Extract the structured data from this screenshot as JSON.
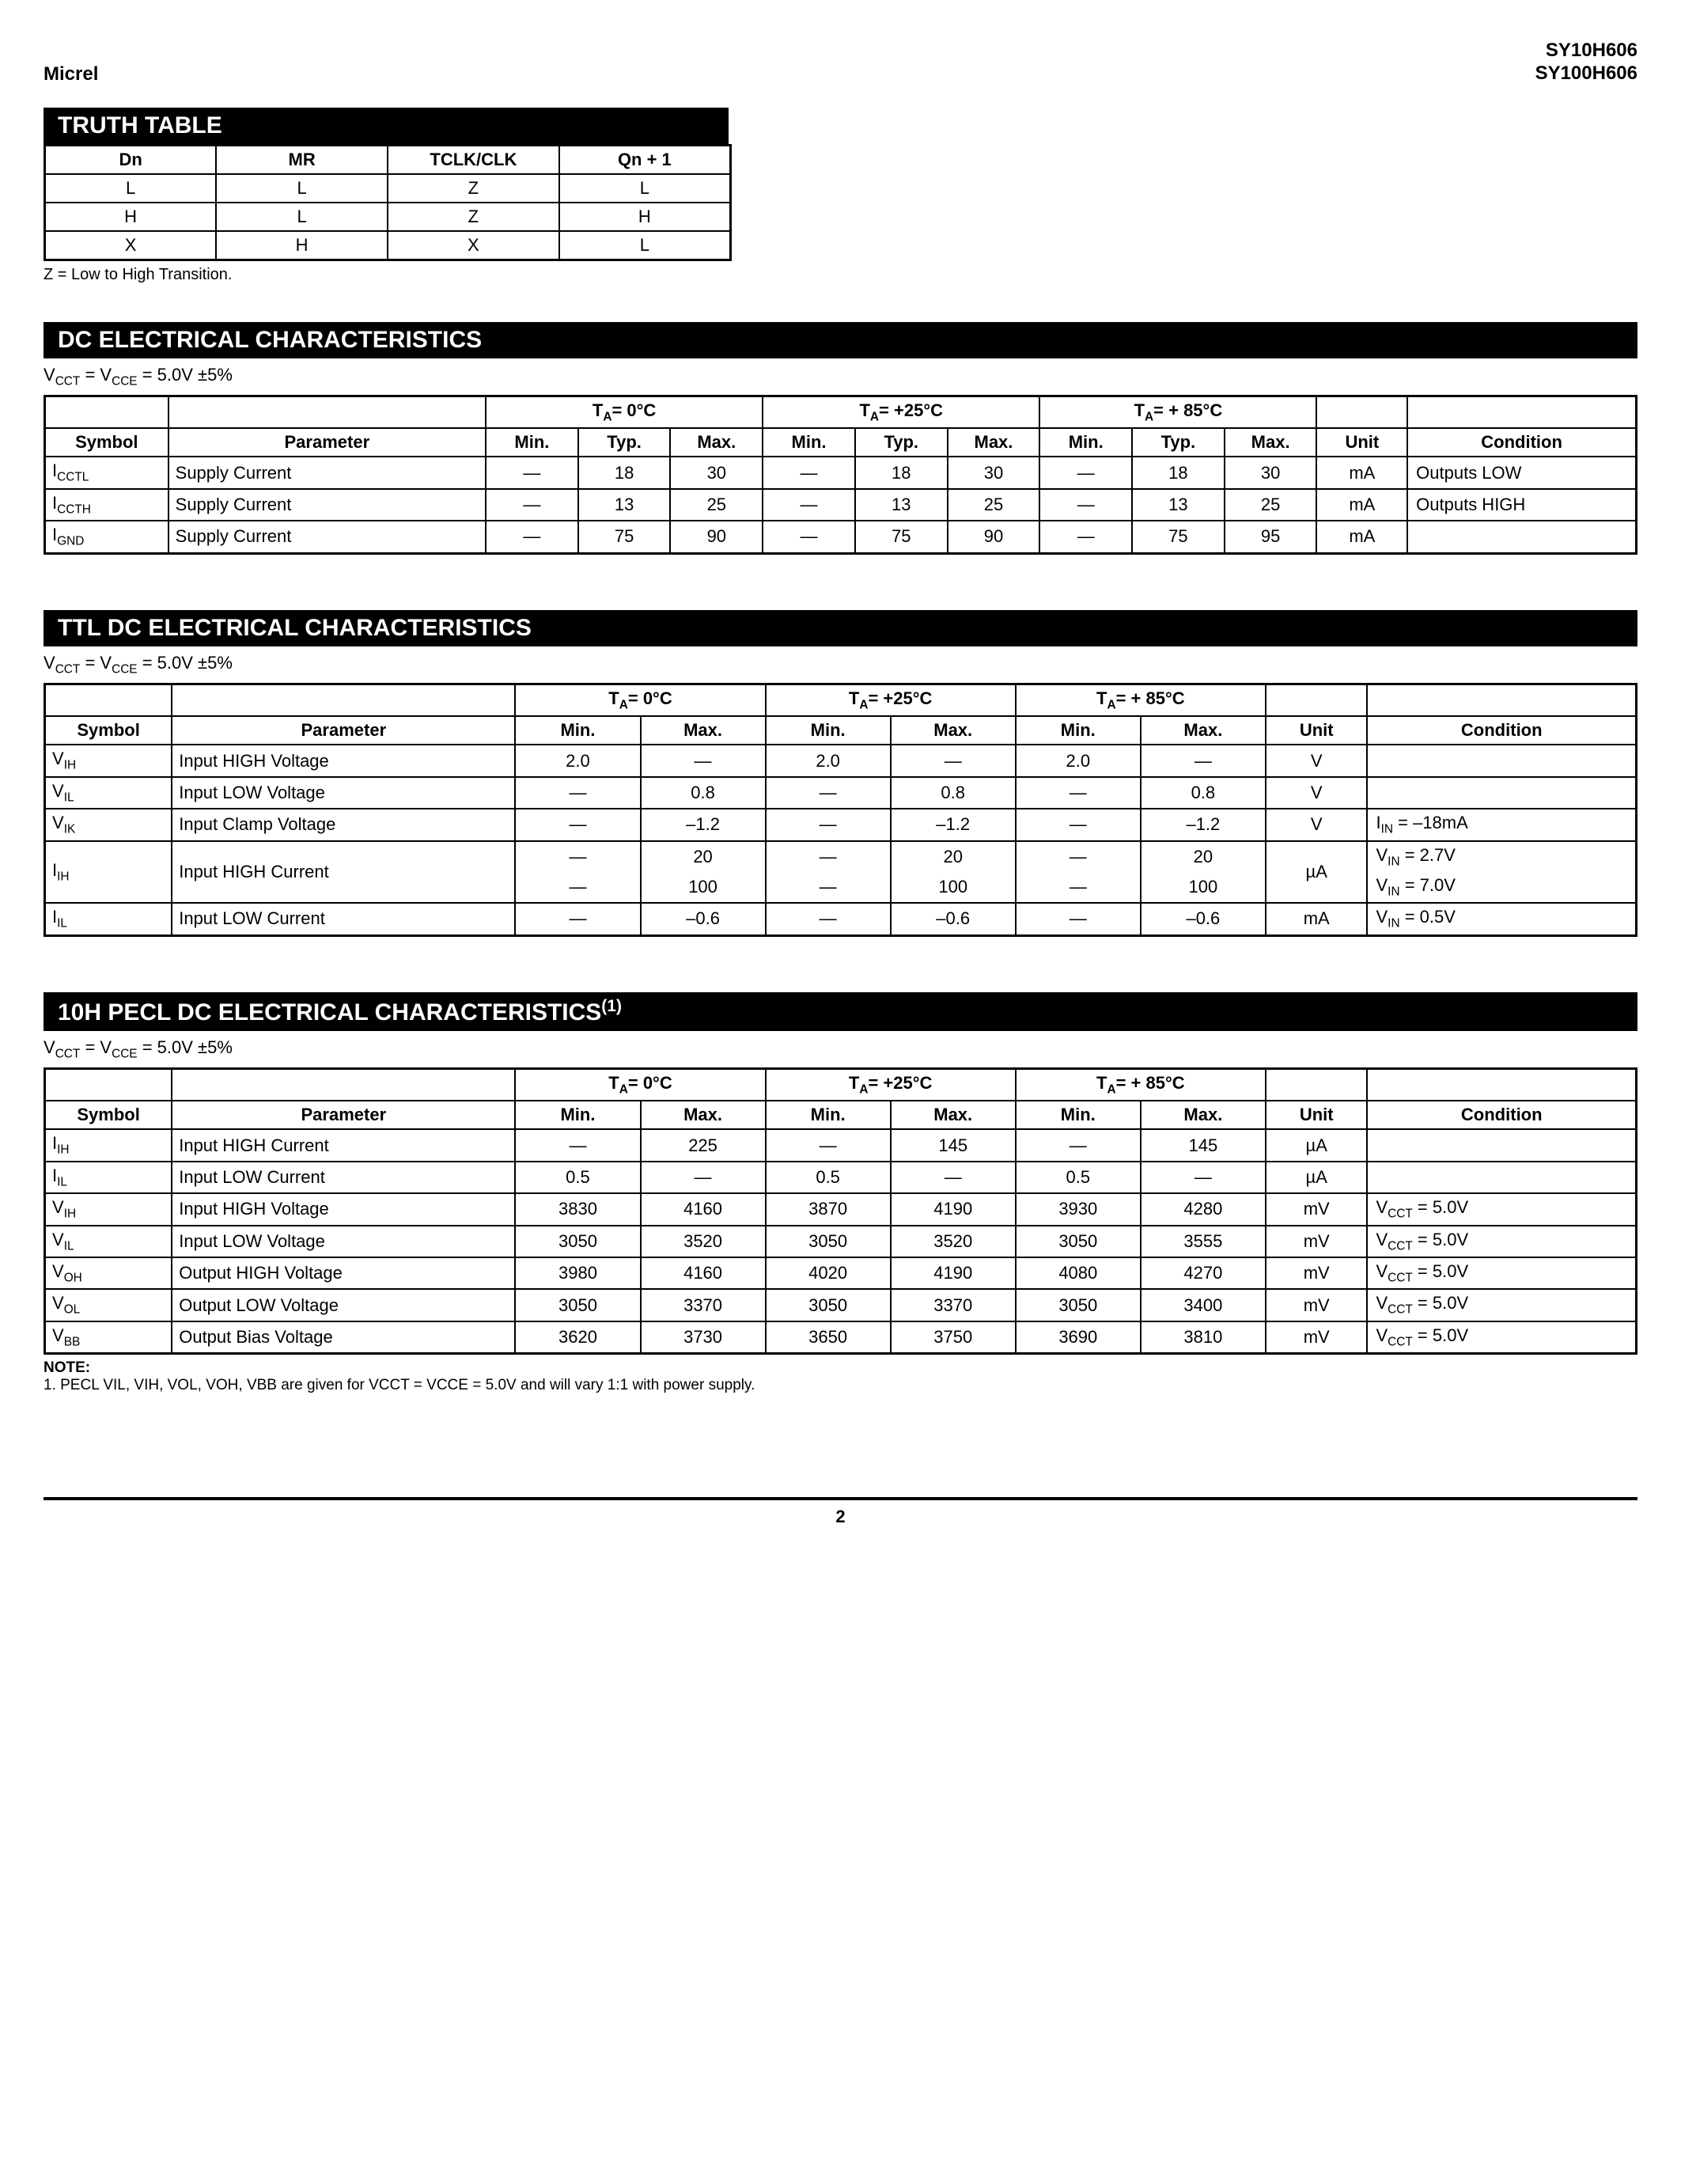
{
  "header": {
    "left": "Micrel",
    "right_line1": "SY10H606",
    "right_line2": "SY100H606"
  },
  "truth_table": {
    "title": "TRUTH TABLE",
    "columns": [
      "Dn",
      "MR",
      "TCLK/CLK",
      "Qn + 1"
    ],
    "rows": [
      [
        "L",
        "L",
        "Z",
        "L"
      ],
      [
        "H",
        "L",
        "Z",
        "H"
      ],
      [
        "X",
        "H",
        "X",
        "L"
      ]
    ],
    "note": "Z = Low to High Transition."
  },
  "dc": {
    "title": "DC ELECTRICAL CHARACTERISTICS",
    "subline": "VCCT = VCCE = 5.0V ±5%",
    "temp_headers": [
      "TA=  0°C",
      "TA= +25°C",
      "TA= + 85°C"
    ],
    "sub_cols": [
      "Min.",
      "Typ.",
      "Max."
    ],
    "col_labels": {
      "symbol": "Symbol",
      "param": "Parameter",
      "unit": "Unit",
      "cond": "Condition"
    },
    "rows": [
      {
        "symbol": "ICCTL",
        "param": "Supply Current",
        "t0": [
          "—",
          "18",
          "30"
        ],
        "t25": [
          "—",
          "18",
          "30"
        ],
        "t85": [
          "—",
          "18",
          "30"
        ],
        "unit": "mA",
        "cond": "Outputs LOW"
      },
      {
        "symbol": "ICCTH",
        "param": "Supply Current",
        "t0": [
          "—",
          "13",
          "25"
        ],
        "t25": [
          "—",
          "13",
          "25"
        ],
        "t85": [
          "—",
          "13",
          "25"
        ],
        "unit": "mA",
        "cond": "Outputs HIGH"
      },
      {
        "symbol": "IGND",
        "param": "Supply Current",
        "t0": [
          "—",
          "75",
          "90"
        ],
        "t25": [
          "—",
          "75",
          "90"
        ],
        "t85": [
          "—",
          "75",
          "95"
        ],
        "unit": "mA",
        "cond": ""
      }
    ]
  },
  "ttl": {
    "title": "TTL DC  ELECTRICAL CHARACTERISTICS",
    "subline": "VCCT = VCCE = 5.0V ±5%",
    "temp_headers": [
      "TA=  0°C",
      "TA= +25°C",
      "TA= + 85°C"
    ],
    "sub_cols": [
      "Min.",
      "Max."
    ],
    "col_labels": {
      "symbol": "Symbol",
      "param": "Parameter",
      "unit": "Unit",
      "cond": "Condition"
    },
    "rows": [
      {
        "symbol": "VIH",
        "param": "Input HIGH Voltage",
        "t0": [
          "2.0",
          "—"
        ],
        "t25": [
          "2.0",
          "—"
        ],
        "t85": [
          "2.0",
          "—"
        ],
        "unit": "V",
        "cond": ""
      },
      {
        "symbol": "VIL",
        "param": "Input LOW Voltage",
        "t0": [
          "—",
          "0.8"
        ],
        "t25": [
          "—",
          "0.8"
        ],
        "t85": [
          "—",
          "0.8"
        ],
        "unit": "V",
        "cond": ""
      },
      {
        "symbol": "VIK",
        "param": "Input Clamp Voltage",
        "t0": [
          "—",
          "–1.2"
        ],
        "t25": [
          "—",
          "–1.2"
        ],
        "t85": [
          "—",
          "–1.2"
        ],
        "unit": "V",
        "cond": "IIN  = –18mA"
      },
      {
        "symbol": "IIH",
        "param": "Input HIGH Current",
        "t0a": [
          "—",
          "20"
        ],
        "t0b": [
          "—",
          "100"
        ],
        "t25a": [
          "—",
          "20"
        ],
        "t25b": [
          "—",
          "100"
        ],
        "t85a": [
          "—",
          "20"
        ],
        "t85b": [
          "—",
          "100"
        ],
        "unit": "µA",
        "cond_a": "VIN = 2.7V",
        "cond_b": "VIN = 7.0V",
        "twoRow": true
      },
      {
        "symbol": "IIL",
        "param": "Input LOW Current",
        "t0": [
          "—",
          "–0.6"
        ],
        "t25": [
          "—",
          "–0.6"
        ],
        "t85": [
          "—",
          "–0.6"
        ],
        "unit": "mA",
        "cond": "VIN = 0.5V"
      }
    ]
  },
  "pecl": {
    "title_html": "10H PECL DC ELECTRICAL CHARACTERISTICS",
    "title_sup": "(1)",
    "subline": "VCCT = VCCE = 5.0V ±5%",
    "temp_headers": [
      "TA=  0°C",
      "TA= +25°C",
      "TA= + 85°C"
    ],
    "sub_cols": [
      "Min.",
      "Max."
    ],
    "col_labels": {
      "symbol": "Symbol",
      "param": "Parameter",
      "unit": "Unit",
      "cond": "Condition"
    },
    "rows": [
      {
        "symbol": "IIH",
        "param": "Input HIGH Current",
        "t0": [
          "—",
          "225"
        ],
        "t25": [
          "—",
          "145"
        ],
        "t85": [
          "—",
          "145"
        ],
        "unit": "µA",
        "cond": ""
      },
      {
        "symbol": "IIL",
        "param": "Input LOW Current",
        "t0": [
          "0.5",
          "—"
        ],
        "t25": [
          "0.5",
          "—"
        ],
        "t85": [
          "0.5",
          "—"
        ],
        "unit": "µA",
        "cond": ""
      },
      {
        "symbol": "VIH",
        "param": "Input HIGH Voltage",
        "t0": [
          "3830",
          "4160"
        ],
        "t25": [
          "3870",
          "4190"
        ],
        "t85": [
          "3930",
          "4280"
        ],
        "unit": "mV",
        "cond": "VCCT = 5.0V"
      },
      {
        "symbol": "VIL",
        "param": "Input LOW Voltage",
        "t0": [
          "3050",
          "3520"
        ],
        "t25": [
          "3050",
          "3520"
        ],
        "t85": [
          "3050",
          "3555"
        ],
        "unit": "mV",
        "cond": "VCCT = 5.0V"
      },
      {
        "symbol": "VOH",
        "param": "Output HIGH Voltage",
        "t0": [
          "3980",
          "4160"
        ],
        "t25": [
          "4020",
          "4190"
        ],
        "t85": [
          "4080",
          "4270"
        ],
        "unit": "mV",
        "cond": "VCCT = 5.0V"
      },
      {
        "symbol": "VOL",
        "param": "Output LOW Voltage",
        "t0": [
          "3050",
          "3370"
        ],
        "t25": [
          "3050",
          "3370"
        ],
        "t85": [
          "3050",
          "3400"
        ],
        "unit": "mV",
        "cond": "VCCT = 5.0V"
      },
      {
        "symbol": "VBB",
        "param": "Output Bias Voltage",
        "t0": [
          "3620",
          "3730"
        ],
        "t25": [
          "3650",
          "3750"
        ],
        "t85": [
          "3690",
          "3810"
        ],
        "unit": "mV",
        "cond": "VCCT = 5.0V"
      }
    ],
    "note_head": "NOTE:",
    "note_body": "1.  PECL VIL, VIH, VOL, VOH, VBB are given for VCCT = VCCE = 5.0V and will vary 1:1 with power supply."
  },
  "footer": {
    "page": "2"
  }
}
